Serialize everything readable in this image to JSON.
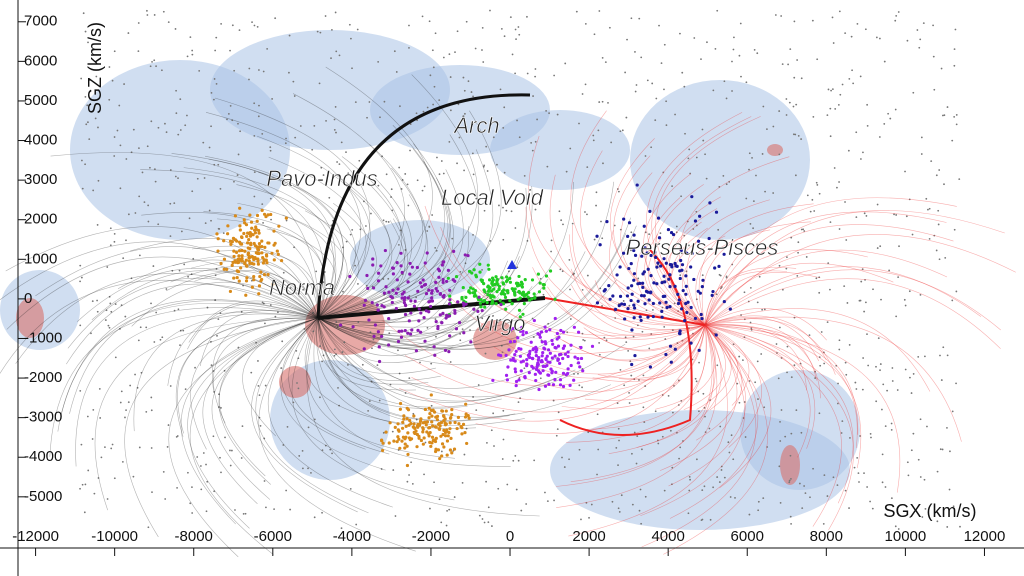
{
  "chart_data": {
    "type": "scatter",
    "xlabel": "SGX (km/s)",
    "ylabel": "SGZ (km/s)",
    "xlim": [
      -12900,
      13000
    ],
    "ylim": [
      -7000,
      7550
    ],
    "xticks": [
      -12000,
      -10000,
      -8000,
      -6000,
      -4000,
      -2000,
      0,
      2000,
      4000,
      6000,
      8000,
      10000,
      12000
    ],
    "yticks": [
      -5000,
      -4000,
      -3000,
      -2000,
      -1000,
      0,
      1000,
      2000,
      3000,
      4000,
      5000,
      6000,
      7000
    ],
    "annotations": [
      "Arch",
      "Pavo-Indus",
      "Local Void",
      "Norma",
      "Virgo",
      "Perseus-Pisces"
    ]
  }
}
